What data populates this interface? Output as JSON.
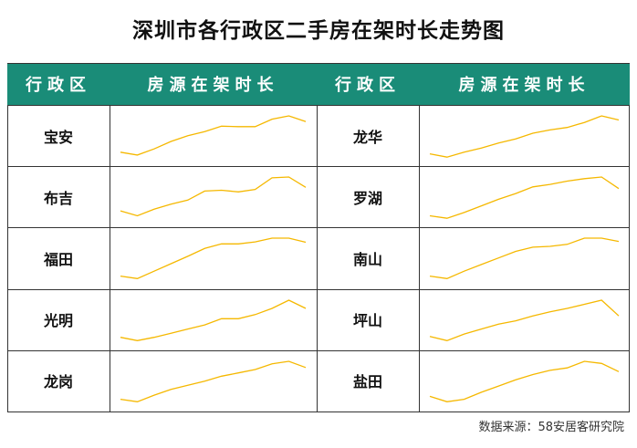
{
  "title": "深圳市各行政区二手房在架时长走势图",
  "headers": {
    "district": "行政区",
    "duration": "房源在架时长"
  },
  "source": "数据来源：58安居客研究院",
  "line_color": "#f5b800",
  "header_color": "#1a8c78",
  "chart_data": {
    "type": "line",
    "note_values": "relative listing-duration index (no axis printed)",
    "series": [
      {
        "district": "宝安",
        "values": [
          0.12,
          0.05,
          0.2,
          0.38,
          0.52,
          0.62,
          0.75,
          0.74,
          0.74,
          0.92,
          1.0,
          0.86
        ]
      },
      {
        "district": "布吉",
        "values": [
          0.18,
          0.06,
          0.22,
          0.34,
          0.44,
          0.66,
          0.68,
          0.64,
          0.7,
          0.98,
          1.0,
          0.75
        ]
      },
      {
        "district": "福田",
        "values": [
          0.08,
          0.02,
          0.2,
          0.38,
          0.56,
          0.75,
          0.86,
          0.86,
          0.91,
          1.0,
          1.0,
          0.9
        ]
      },
      {
        "district": "光明",
        "values": [
          0.1,
          0.02,
          0.1,
          0.2,
          0.3,
          0.4,
          0.55,
          0.55,
          0.65,
          0.8,
          1.0,
          0.8
        ]
      },
      {
        "district": "龙岗",
        "values": [
          0.08,
          0.02,
          0.18,
          0.32,
          0.42,
          0.52,
          0.64,
          0.72,
          0.8,
          0.94,
          1.0,
          0.85
        ]
      },
      {
        "district": "龙华",
        "values": [
          0.08,
          0.0,
          0.12,
          0.22,
          0.34,
          0.44,
          0.58,
          0.66,
          0.72,
          0.84,
          1.0,
          0.9
        ]
      },
      {
        "district": "罗湖",
        "values": [
          0.06,
          0.0,
          0.14,
          0.3,
          0.46,
          0.6,
          0.76,
          0.82,
          0.9,
          0.96,
          1.0,
          0.72
        ]
      },
      {
        "district": "南山",
        "values": [
          0.08,
          0.02,
          0.2,
          0.36,
          0.52,
          0.68,
          0.78,
          0.8,
          0.85,
          1.0,
          1.0,
          0.92
        ]
      },
      {
        "district": "坪山",
        "values": [
          0.12,
          0.02,
          0.18,
          0.3,
          0.42,
          0.5,
          0.62,
          0.72,
          0.8,
          0.9,
          1.0,
          0.62
        ]
      },
      {
        "district": "盐田",
        "values": [
          0.15,
          0.02,
          0.08,
          0.25,
          0.4,
          0.55,
          0.68,
          0.78,
          0.84,
          1.0,
          0.95,
          0.75
        ]
      }
    ]
  }
}
